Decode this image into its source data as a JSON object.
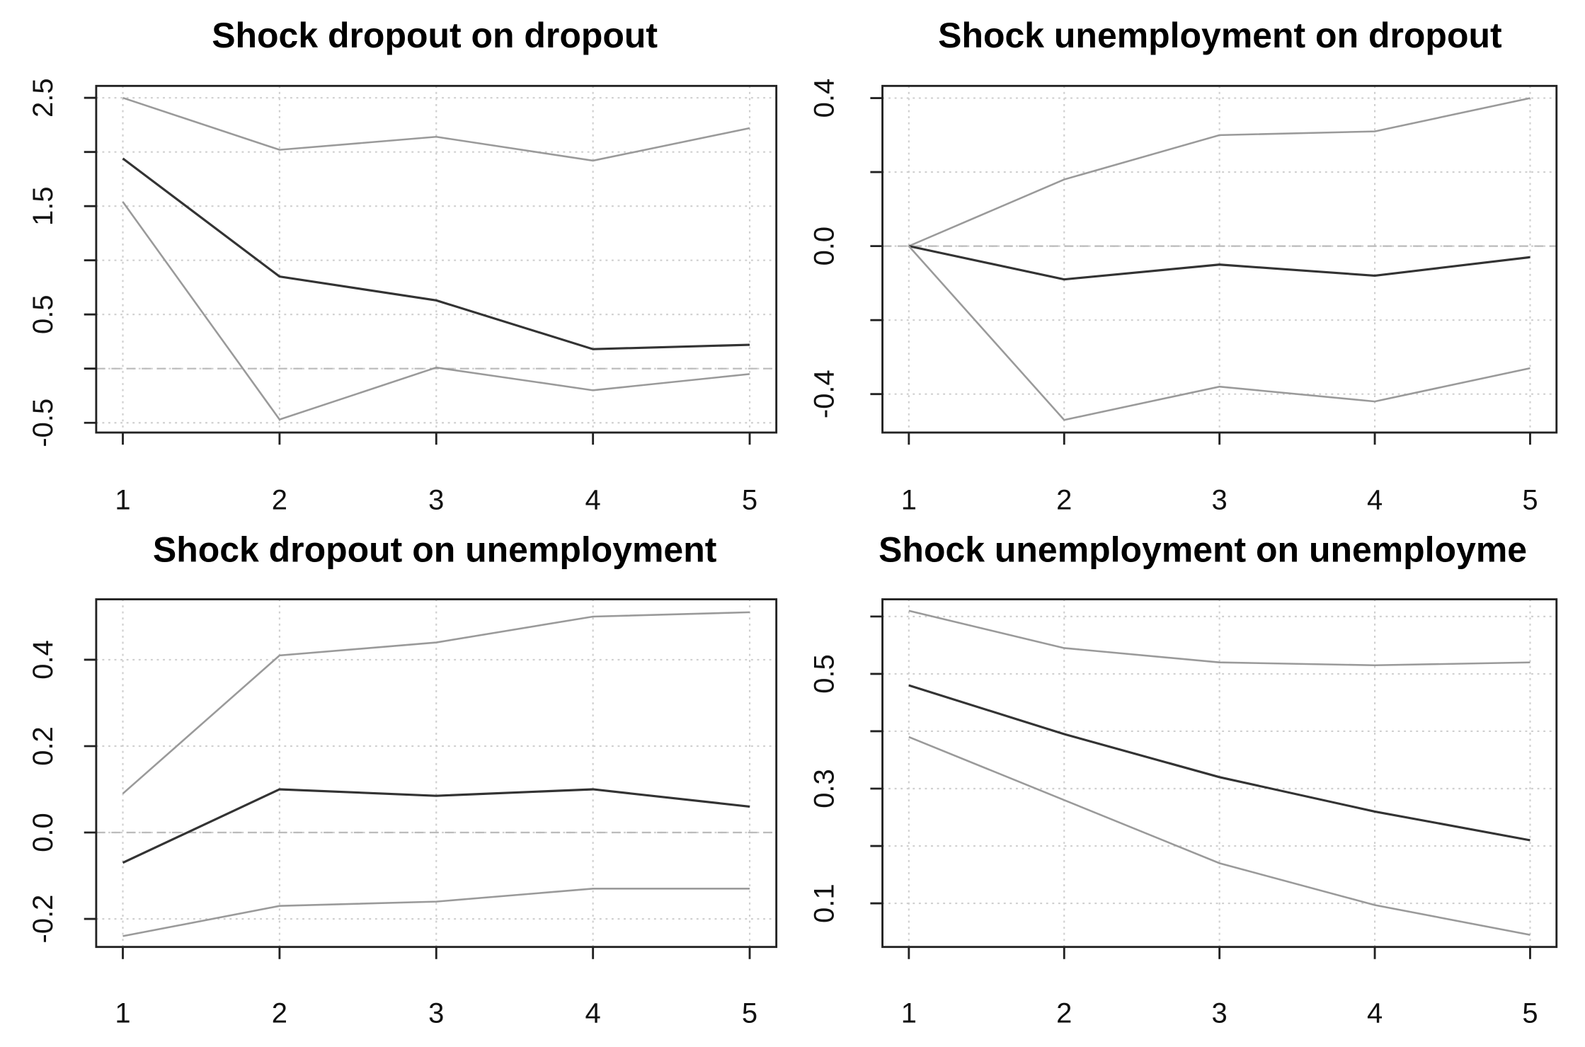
{
  "chart_data": [
    {
      "type": "line",
      "title": "Shock dropout on dropout",
      "x": [
        1,
        2,
        3,
        4,
        5
      ],
      "xlim": [
        0.83,
        5.17
      ],
      "xticks": [
        1,
        2,
        3,
        4,
        5
      ],
      "ylim": [
        -0.59,
        2.61
      ],
      "yticks": [
        -0.5,
        0.5,
        1.5,
        2.5
      ],
      "yminorticks": [
        0,
        1,
        2
      ],
      "hline": 0,
      "grid": true,
      "series": [
        {
          "color": "#9a9a9a",
          "values": [
            2.5,
            2.02,
            2.14,
            1.92,
            2.22
          ]
        },
        {
          "color": "#333333",
          "values": [
            1.94,
            0.85,
            0.63,
            0.18,
            0.22
          ]
        },
        {
          "color": "#9a9a9a",
          "values": [
            1.54,
            -0.47,
            0.01,
            -0.2,
            -0.05
          ]
        }
      ]
    },
    {
      "type": "line",
      "title": "Shock unemployment on dropout",
      "x": [
        1,
        2,
        3,
        4,
        5
      ],
      "xlim": [
        0.83,
        5.17
      ],
      "xticks": [
        1,
        2,
        3,
        4,
        5
      ],
      "ylim": [
        -0.504,
        0.433
      ],
      "yticks": [
        -0.4,
        {
          "value": 0,
          "label": "0.0"
        },
        0.4
      ],
      "yminorticks": [
        -0.2,
        0.2
      ],
      "hline": 0,
      "grid": true,
      "series": [
        {
          "color": "#9a9a9a",
          "values": [
            0,
            0.18,
            0.3,
            0.31,
            0.4
          ]
        },
        {
          "color": "#333333",
          "values": [
            0,
            -0.09,
            -0.05,
            -0.08,
            -0.03
          ]
        },
        {
          "color": "#9a9a9a",
          "values": [
            0,
            -0.47,
            -0.38,
            -0.42,
            -0.33
          ]
        }
      ]
    },
    {
      "type": "line",
      "title": "Shock dropout on unemployment",
      "x": [
        1,
        2,
        3,
        4,
        5
      ],
      "xlim": [
        0.83,
        5.17
      ],
      "xticks": [
        1,
        2,
        3,
        4,
        5
      ],
      "ylim": [
        -0.265,
        0.54
      ],
      "yticks": [
        -0.2,
        {
          "value": 0,
          "label": "0.0"
        },
        0.2,
        0.4
      ],
      "yminorticks": [],
      "hline": 0,
      "grid": true,
      "series": [
        {
          "color": "#9a9a9a",
          "values": [
            0.09,
            0.41,
            0.44,
            0.5,
            0.51
          ]
        },
        {
          "color": "#333333",
          "values": [
            -0.07,
            0.1,
            0.085,
            0.1,
            0.06
          ]
        },
        {
          "color": "#9a9a9a",
          "values": [
            -0.24,
            -0.17,
            -0.16,
            -0.13,
            -0.13
          ]
        }
      ]
    },
    {
      "type": "line",
      "title": "Shock unemployment on unemployme",
      "x": [
        1,
        2,
        3,
        4,
        5
      ],
      "xlim": [
        0.83,
        5.17
      ],
      "xticks": [
        1,
        2,
        3,
        4,
        5
      ],
      "ylim": [
        0.024,
        0.63
      ],
      "yticks": [
        0.1,
        0.3,
        0.5
      ],
      "yminorticks": [
        0.2,
        0.4,
        0.6
      ],
      "grid": true,
      "series": [
        {
          "color": "#9a9a9a",
          "values": [
            0.61,
            0.545,
            0.52,
            0.515,
            0.52
          ]
        },
        {
          "color": "#333333",
          "values": [
            0.48,
            0.395,
            0.32,
            0.26,
            0.21
          ]
        },
        {
          "color": "#9a9a9a",
          "values": [
            0.39,
            0.28,
            0.17,
            0.097,
            0.045
          ]
        }
      ]
    }
  ]
}
